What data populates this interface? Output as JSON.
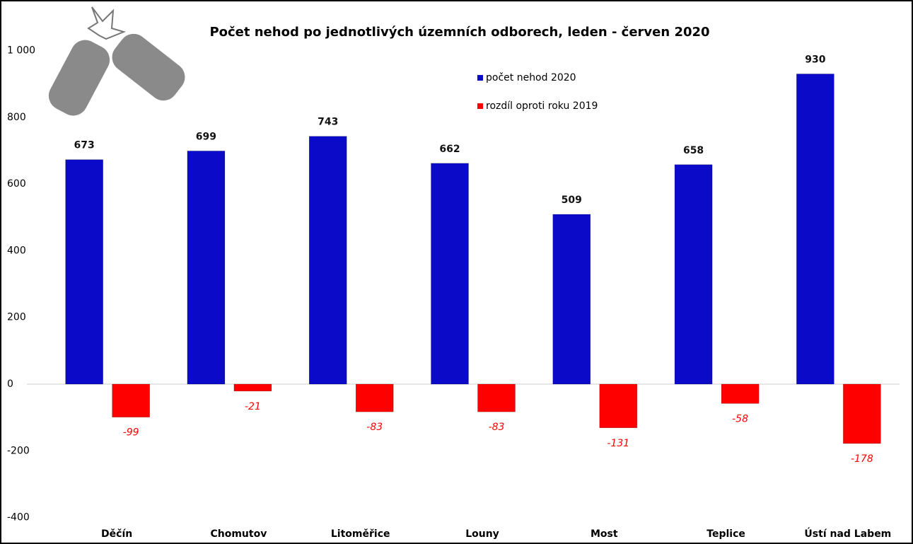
{
  "chart_data": {
    "type": "bar",
    "title": "Počet nehod po jednotlivých územních odborech, leden - červen 2020",
    "categories": [
      "Děčín",
      "Chomutov",
      "Litoměřice",
      "Louny",
      "Most",
      "Teplice",
      "Ústí nad Labem"
    ],
    "series": [
      {
        "name": "počet nehod 2020",
        "color": "#0a0ac8",
        "values": [
          673,
          699,
          743,
          662,
          509,
          658,
          930
        ]
      },
      {
        "name": "rozdíl oproti roku 2019",
        "color": "#ff0000",
        "values": [
          -99,
          -21,
          -83,
          -83,
          -131,
          -58,
          -178
        ]
      }
    ],
    "ylim": [
      -400,
      1000
    ],
    "yticks": [
      -400,
      -200,
      0,
      200,
      400,
      600,
      800,
      {
        "value": 1000,
        "label": "1 000"
      }
    ],
    "legend": "top-right"
  }
}
